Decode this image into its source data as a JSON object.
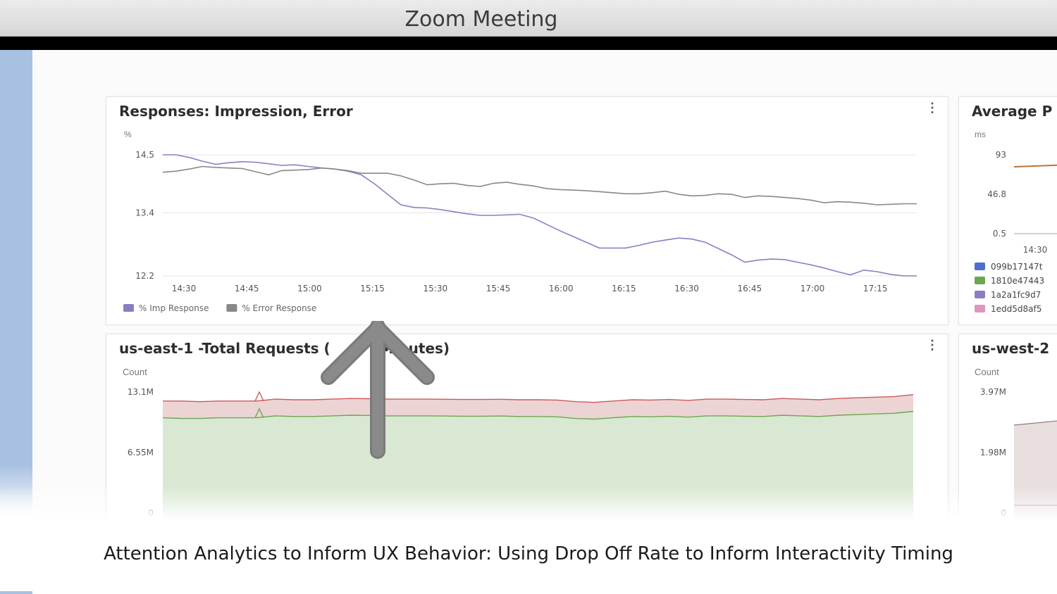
{
  "window": {
    "title": "Zoom Meeting"
  },
  "caption": "Attention Analytics to Inform UX Behavior: Using Drop Off Rate to Inform Interactivity Timing",
  "panels": {
    "responses": {
      "title": "Responses: Impression, Error",
      "unit": "%",
      "menu_icon": "vertical-dots-icon"
    },
    "avg": {
      "title": "Average P",
      "unit": "ms",
      "menu_icon": "vertical-dots-icon"
    },
    "east": {
      "title": "us-east-1 -Total Requests (",
      "title_tail": "Minutes)",
      "unit": "Count",
      "menu_icon": "vertical-dots-icon"
    },
    "west": {
      "title": "us-west-2",
      "unit": "Count"
    }
  },
  "overlay": {
    "icon": "arrow-up-icon",
    "color": "#7a7a7a"
  },
  "chart_data": [
    {
      "type": "line",
      "title": "Responses: Impression, Error",
      "ylabel": "%",
      "ylim": [
        12.2,
        14.5
      ],
      "yticks": [
        "14.5",
        "13.4",
        "12.2"
      ],
      "xticks": [
        "14:30",
        "14:45",
        "15:00",
        "15:15",
        "15:30",
        "15:45",
        "16:00",
        "16:15",
        "16:30",
        "16:45",
        "17:00",
        "17:15"
      ],
      "x": [
        "14:30",
        "14:33",
        "14:36",
        "14:39",
        "14:42",
        "14:45",
        "14:48",
        "14:51",
        "14:54",
        "14:57",
        "15:00",
        "15:03",
        "15:06",
        "15:09",
        "15:12",
        "15:15",
        "15:18",
        "15:21",
        "15:24",
        "15:27",
        "15:30",
        "15:33",
        "15:36",
        "15:39",
        "15:42",
        "15:45",
        "15:48",
        "15:51",
        "15:54",
        "15:57",
        "16:00",
        "16:03",
        "16:06",
        "16:09",
        "16:12",
        "16:15",
        "16:18",
        "16:21",
        "16:24",
        "16:27",
        "16:30",
        "16:33",
        "16:36",
        "16:39",
        "16:42",
        "16:45",
        "16:48",
        "16:51",
        "16:54",
        "16:57",
        "17:00",
        "17:03",
        "17:06",
        "17:09",
        "17:12",
        "17:15",
        "17:18",
        "17:21"
      ],
      "series": [
        {
          "name": "% Imp Response",
          "color": "#8e7cc3",
          "values": [
            14.5,
            14.5,
            14.45,
            14.38,
            14.32,
            14.35,
            14.37,
            14.36,
            14.33,
            14.3,
            14.31,
            14.28,
            14.25,
            14.23,
            14.19,
            14.12,
            13.95,
            13.75,
            13.55,
            13.5,
            13.49,
            13.46,
            13.42,
            13.38,
            13.35,
            13.35,
            13.36,
            13.37,
            13.3,
            13.18,
            13.06,
            12.95,
            12.84,
            12.73,
            12.73,
            12.73,
            12.78,
            12.84,
            12.88,
            12.92,
            12.9,
            12.84,
            12.72,
            12.6,
            12.46,
            12.5,
            12.52,
            12.51,
            12.46,
            12.41,
            12.35,
            12.28,
            12.22,
            12.31,
            12.28,
            12.23,
            12.2,
            12.2
          ]
        },
        {
          "name": "% Error Response",
          "color": "#888888",
          "values": [
            14.17,
            14.19,
            14.23,
            14.28,
            14.26,
            14.25,
            14.24,
            14.18,
            14.12,
            14.2,
            14.21,
            14.22,
            14.25,
            14.23,
            14.2,
            14.15,
            14.15,
            14.15,
            14.1,
            14.02,
            13.93,
            13.95,
            13.96,
            13.92,
            13.9,
            13.96,
            13.98,
            13.94,
            13.91,
            13.86,
            13.84,
            13.83,
            13.82,
            13.8,
            13.78,
            13.76,
            13.76,
            13.78,
            13.81,
            13.75,
            13.72,
            13.73,
            13.76,
            13.75,
            13.69,
            13.72,
            13.71,
            13.69,
            13.67,
            13.64,
            13.59,
            13.61,
            13.6,
            13.58,
            13.55,
            13.56,
            13.57,
            13.57
          ]
        }
      ],
      "legend": "bottom-left"
    },
    {
      "type": "line",
      "title": "Average P",
      "ylabel": "ms",
      "yticks": [
        "93",
        "46.8",
        "0.5"
      ],
      "xticks": [
        "14:30"
      ],
      "legend_entries": [
        {
          "label": "099b17147t",
          "color": "#4a6fd1"
        },
        {
          "label": "1810e47443",
          "color": "#6aa84f"
        },
        {
          "label": "1a2a1fc9d7",
          "color": "#8e7cc3"
        },
        {
          "label": "1edd5d8af5",
          "color": "#e094c0"
        }
      ]
    },
    {
      "type": "area",
      "title": "us-east-1 -Total Requests (Minutes)",
      "ylabel": "Count",
      "yticks": [
        "13.1M",
        "6.55M",
        "0"
      ],
      "ylim": [
        0,
        13100000
      ],
      "series": [
        {
          "name": "",
          "color": "#b6d7a8",
          "values": [
            11.1,
            11.05,
            11.05,
            11.1,
            11.1,
            11.1,
            11.25,
            11.2,
            11.2,
            11.25,
            11.3,
            11.28,
            11.25,
            11.25,
            11.25,
            11.24,
            11.22,
            11.22,
            11.24,
            11.2,
            11.2,
            11.18,
            11.05,
            11.0,
            11.1,
            11.2,
            11.18,
            11.22,
            11.15,
            11.25,
            11.25,
            11.22,
            11.2,
            11.3,
            11.25,
            11.2,
            11.3,
            11.35,
            11.4,
            11.45,
            11.6
          ]
        },
        {
          "name": "",
          "color": "#e6b8b8",
          "values": [
            1.3,
            1.35,
            1.3,
            1.3,
            1.3,
            1.3,
            1.3,
            1.3,
            1.3,
            1.3,
            1.3,
            1.3,
            1.3,
            1.3,
            1.3,
            1.3,
            1.3,
            1.3,
            1.3,
            1.3,
            1.3,
            1.3,
            1.3,
            1.3,
            1.3,
            1.3,
            1.3,
            1.3,
            1.3,
            1.3,
            1.3,
            1.3,
            1.3,
            1.3,
            1.3,
            1.3,
            1.3,
            1.3,
            1.3,
            1.3,
            1.3
          ]
        }
      ]
    },
    {
      "type": "area",
      "title": "us-west-2",
      "ylabel": "Count",
      "yticks": [
        "3.97M",
        "1.98M",
        "0"
      ]
    }
  ]
}
